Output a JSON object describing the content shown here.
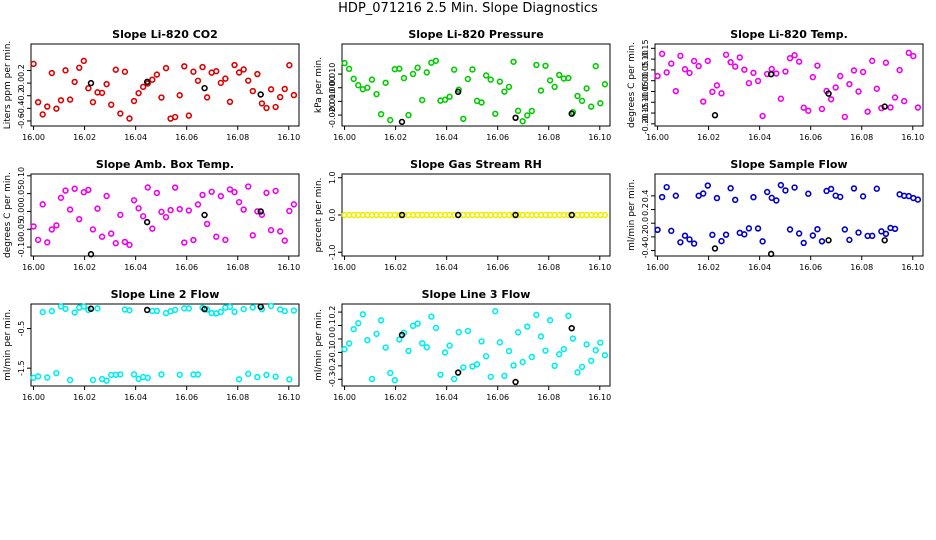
{
  "page_title": "HDP_071216  2.5 Min. Slope Diagnostics",
  "colors": {
    "red": "#dd0000",
    "green": "#00cc00",
    "magenta": "#ee00ee",
    "yellow": "#eeee00",
    "blue": "#0000cc",
    "cyan": "#00eeee",
    "black": "#000000"
  },
  "chart_data": [
    {
      "type": "scatter",
      "title": "Slope Li-820 CO2",
      "ylabel": "Liters ppm per min.",
      "color_key": "red",
      "xlim": [
        15.999,
        16.104
      ],
      "ylim": [
        -0.68,
        0.62
      ],
      "xticks": [
        16.0,
        16.02,
        16.04,
        16.06,
        16.08,
        16.1
      ],
      "xtick_labels": [
        "16.00",
        "16.02",
        "16.04",
        "16.06",
        "16.08",
        "16.10"
      ],
      "yticks": [
        -0.6,
        -0.4,
        -0.2,
        0.0,
        0.2
      ],
      "ytick_labels": [
        "-0.6",
        "-0.4",
        "-0.2",
        "0.0",
        "0.2"
      ],
      "seed": 11,
      "offset": -0.1,
      "spread": 0.5,
      "black_points": [
        {
          "x": 16.0225,
          "y": 0.0
        },
        {
          "x": 16.0445,
          "y": 0.02
        },
        {
          "x": 16.067,
          "y": -0.08
        },
        {
          "x": 16.089,
          "y": -0.18
        }
      ]
    },
    {
      "type": "scatter",
      "title": "Slope Li-820 Pressure",
      "ylabel": "kPa per min.",
      "color_key": "green",
      "xlim": [
        15.999,
        16.104
      ],
      "ylim": [
        -0.028,
        0.032
      ],
      "xticks": [
        16.0,
        16.02,
        16.04,
        16.06,
        16.08,
        16.1
      ],
      "xtick_labels": [
        "16.00",
        "16.02",
        "16.04",
        "16.06",
        "16.08",
        "16.10"
      ],
      "yticks": [
        -0.02,
        -0.01,
        0.0,
        0.01
      ],
      "ytick_labels": [
        "-0.020",
        "-0.010",
        "0.000",
        "0.010"
      ],
      "seed": 23,
      "offset": -0.002,
      "spread": 0.023,
      "black_points": [
        {
          "x": 16.0225,
          "y": -0.025
        },
        {
          "x": 16.0445,
          "y": -0.003
        },
        {
          "x": 16.067,
          "y": -0.022
        },
        {
          "x": 16.089,
          "y": -0.019
        }
      ]
    },
    {
      "type": "scatter",
      "title": "Slope Li-820 Temp.",
      "ylabel": "degrees C per min.",
      "color_key": "magenta",
      "xlim": [
        15.999,
        16.104
      ],
      "ylim": [
        -0.21,
        0.17
      ],
      "xticks": [
        16.0,
        16.02,
        16.04,
        16.06,
        16.08,
        16.1
      ],
      "xtick_labels": [
        "16.00",
        "16.02",
        "16.04",
        "16.06",
        "16.08",
        "16.10"
      ],
      "yticks": [
        -0.2,
        -0.15,
        -0.1,
        -0.05,
        0.0,
        0.05,
        0.1,
        0.15
      ],
      "ytick_labels": [
        "-0.20",
        "-0.15",
        "-0.10",
        "-0.05",
        "0.00",
        "0.05",
        "0.10",
        "0.15"
      ],
      "seed": 37,
      "offset": -0.02,
      "spread": 0.15,
      "black_points": [
        {
          "x": 16.0225,
          "y": -0.16
        },
        {
          "x": 16.0445,
          "y": 0.03
        },
        {
          "x": 16.067,
          "y": -0.06
        },
        {
          "x": 16.089,
          "y": -0.12
        }
      ]
    },
    {
      "type": "scatter",
      "title": "Slope Amb. Box Temp.",
      "ylabel": "degrees C per min.",
      "color_key": "magenta",
      "xlim": [
        15.999,
        16.104
      ],
      "ylim": [
        -0.125,
        0.105
      ],
      "xticks": [
        16.0,
        16.02,
        16.04,
        16.06,
        16.08,
        16.1
      ],
      "xtick_labels": [
        "16.00",
        "16.02",
        "16.04",
        "16.06",
        "16.08",
        "16.10"
      ],
      "yticks": [
        -0.1,
        -0.05,
        0.0,
        0.05,
        0.1
      ],
      "ytick_labels": [
        "-0.10",
        "-0.05",
        "0.00",
        "0.05",
        "0.10"
      ],
      "seed": 51,
      "offset": -0.015,
      "spread": 0.085,
      "black_points": [
        {
          "x": 16.0225,
          "y": -0.12
        },
        {
          "x": 16.0445,
          "y": -0.03
        },
        {
          "x": 16.067,
          "y": -0.01
        },
        {
          "x": 16.089,
          "y": 0.0
        }
      ]
    },
    {
      "type": "scatter",
      "title": "Slope Gas Stream RH",
      "ylabel": "percent per min.",
      "color_key": "yellow",
      "xlim": [
        15.999,
        16.104
      ],
      "ylim": [
        -1.1,
        1.1
      ],
      "xticks": [
        16.0,
        16.02,
        16.04,
        16.06,
        16.08,
        16.1
      ],
      "xtick_labels": [
        "16.00",
        "16.02",
        "16.04",
        "16.06",
        "16.08",
        "16.10"
      ],
      "yticks": [
        -1.0,
        0.0,
        1.0
      ],
      "ytick_labels": [
        "-1.0",
        "0.0",
        "1.0"
      ],
      "seed": 0,
      "offset": 0.0,
      "spread": 0.0,
      "black_points": [
        {
          "x": 16.0225,
          "y": 0.0
        },
        {
          "x": 16.0445,
          "y": 0.0
        },
        {
          "x": 16.067,
          "y": 0.0
        },
        {
          "x": 16.089,
          "y": 0.0
        }
      ]
    },
    {
      "type": "scatter",
      "title": "Slope Sample Flow",
      "ylabel": "ml/min per min.",
      "color_key": "blue",
      "xlim": [
        15.999,
        16.104
      ],
      "ylim": [
        -0.48,
        0.72
      ],
      "xticks": [
        16.0,
        16.02,
        16.04,
        16.06,
        16.08,
        16.1
      ],
      "xtick_labels": [
        "16.00",
        "16.02",
        "16.04",
        "16.06",
        "16.08",
        "16.10"
      ],
      "yticks": [
        -0.4,
        -0.2,
        0.0,
        0.2,
        0.4
      ],
      "ytick_labels": [
        "-0.4",
        "-0.2",
        "0.0",
        "0.2",
        "0.4"
      ],
      "pattern": "bimodal",
      "seed": 67,
      "hi": 0.45,
      "lo": -0.18,
      "spread": 0.12,
      "black_points": [
        {
          "x": 16.0225,
          "y": -0.37
        },
        {
          "x": 16.0445,
          "y": -0.45
        },
        {
          "x": 16.067,
          "y": -0.25
        },
        {
          "x": 16.089,
          "y": -0.25
        }
      ]
    },
    {
      "type": "scatter",
      "title": "Slope Line 2 Flow",
      "ylabel": "ml/min per min.",
      "color_key": "cyan",
      "xlim": [
        15.999,
        16.104
      ],
      "ylim": [
        -1.95,
        0.12
      ],
      "xticks": [
        16.0,
        16.02,
        16.04,
        16.06,
        16.08,
        16.1
      ],
      "xtick_labels": [
        "16.00",
        "16.02",
        "16.04",
        "16.06",
        "16.08",
        "16.10"
      ],
      "yticks": [
        -1.5,
        -0.5
      ],
      "ytick_labels": [
        "-1.5",
        "-0.5"
      ],
      "pattern": "bimodal",
      "seed": 79,
      "hi": -0.02,
      "lo": -1.72,
      "spread": 0.1,
      "black_points": [
        {
          "x": 16.0225,
          "y": 0.0
        },
        {
          "x": 16.0445,
          "y": -0.03
        },
        {
          "x": 16.067,
          "y": -0.01
        },
        {
          "x": 16.089,
          "y": 0.05
        }
      ]
    },
    {
      "type": "scatter",
      "title": "Slope Line 3 Flow",
      "ylabel": "ml/min per min.",
      "color_key": "cyan",
      "xlim": [
        15.999,
        16.104
      ],
      "ylim": [
        -0.35,
        0.26
      ],
      "xticks": [
        16.0,
        16.02,
        16.04,
        16.06,
        16.08,
        16.1
      ],
      "xtick_labels": [
        "16.00",
        "16.02",
        "16.04",
        "16.06",
        "16.08",
        "16.10"
      ],
      "yticks": [
        -0.3,
        -0.2,
        -0.1,
        0.0,
        0.1,
        0.2
      ],
      "ytick_labels": [
        "-0.3",
        "-0.2",
        "-0.1",
        "0.0",
        "0.1",
        "0.2"
      ],
      "seed": 93,
      "offset": -0.05,
      "spread": 0.26,
      "black_points": [
        {
          "x": 16.0225,
          "y": 0.03
        },
        {
          "x": 16.0445,
          "y": -0.25
        },
        {
          "x": 16.067,
          "y": -0.32
        },
        {
          "x": 16.089,
          "y": 0.08
        }
      ]
    }
  ]
}
